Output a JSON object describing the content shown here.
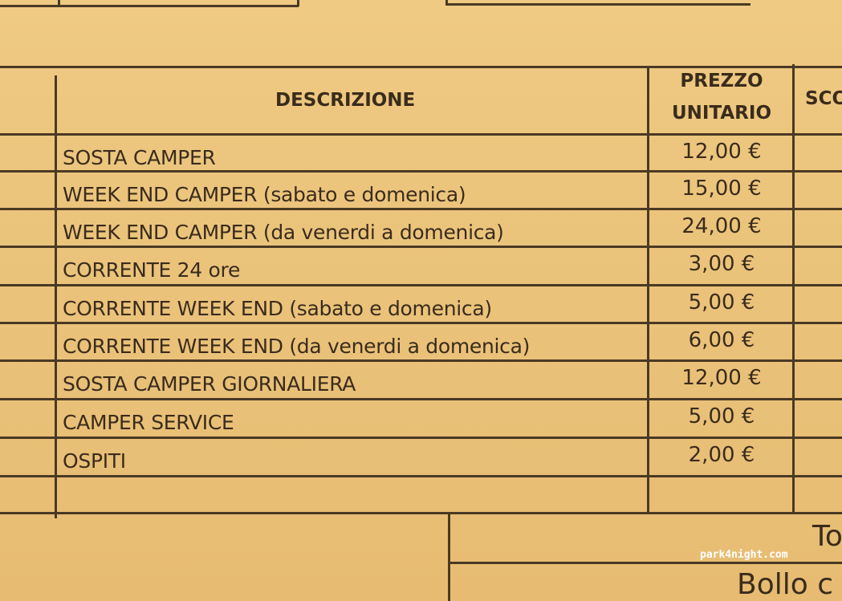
{
  "table": {
    "headers": {
      "description": "DESCRIZIONE",
      "unit_price_line1": "PREZZO",
      "unit_price_line2": "UNITARIO",
      "discount_partial": "SCO"
    },
    "rows": [
      {
        "description": "SOSTA CAMPER",
        "price": "12,00 €"
      },
      {
        "description": "WEEK END CAMPER  (sabato e domenica)",
        "price": "15,00 €"
      },
      {
        "description": "WEEK END CAMPER  (da venerdi a domenica)",
        "price": "24,00 €"
      },
      {
        "description": "CORRENTE   24 ore",
        "price": "3,00 €"
      },
      {
        "description": "CORRENTE WEEK END (sabato e domenica)",
        "price": "5,00 €"
      },
      {
        "description": "CORRENTE WEEK END (da venerdi a domenica)",
        "price": "6,00 €"
      },
      {
        "description": "SOSTA CAMPER GIORNALIERA",
        "price": "12,00 €"
      },
      {
        "description": "CAMPER SERVICE",
        "price": "5,00 €"
      },
      {
        "description": "OSPITI",
        "price": "2,00 €"
      }
    ]
  },
  "footer": {
    "total_partial": "To",
    "stamp_partial": "Bollo c"
  },
  "watermark": "park4night.com",
  "colors": {
    "paper": "#ebc57c",
    "ink": "#4a3924"
  }
}
